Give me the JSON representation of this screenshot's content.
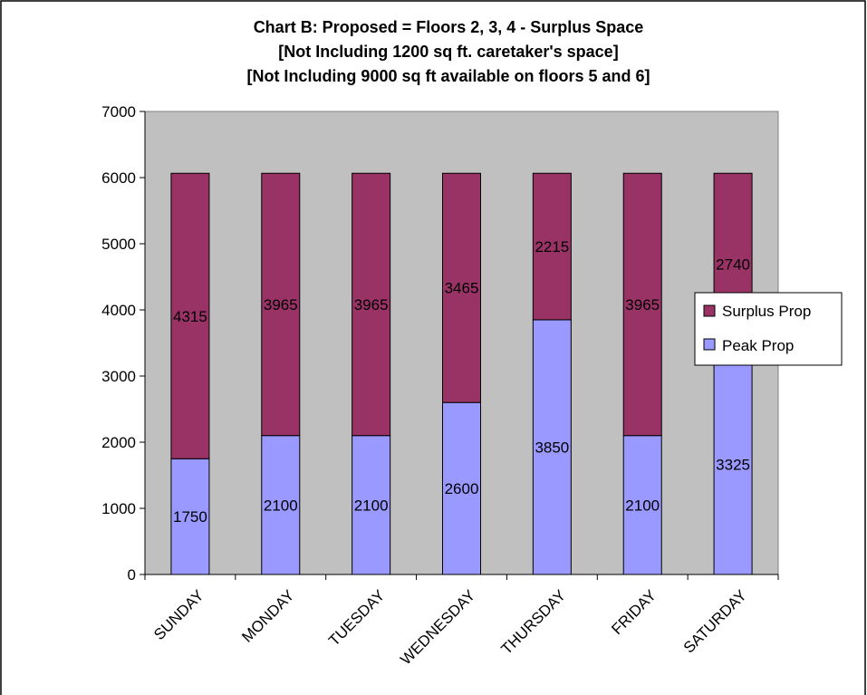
{
  "chart_data": {
    "type": "bar",
    "stacked": true,
    "title_lines": [
      "Chart B:  Proposed =  Floors 2, 3, 4 - Surplus Space",
      "[Not Including 1200 sq ft. caretaker's space]",
      "[Not Including 9000 sq ft available on floors 5 and 6]"
    ],
    "categories": [
      "SUNDAY",
      "MONDAY",
      "TUESDAY",
      "WEDNESDAY",
      "THURSDAY",
      "FRIDAY",
      "SATURDAY"
    ],
    "series": [
      {
        "name": "Peak Prop",
        "color": "#9999FF",
        "values": [
          1750,
          2100,
          2100,
          2600,
          3850,
          2100,
          3325
        ]
      },
      {
        "name": "Surplus Prop",
        "color": "#993366",
        "values": [
          4315,
          3965,
          3965,
          3465,
          2215,
          3965,
          2740
        ]
      }
    ],
    "ylim": [
      0,
      7000
    ],
    "yticks": [
      0,
      1000,
      2000,
      3000,
      4000,
      5000,
      6000,
      7000
    ],
    "legend_order": [
      "Surplus Prop",
      "Peak Prop"
    ],
    "legend_position": "right",
    "plot_background": "#C0C0C0",
    "grid": false
  }
}
